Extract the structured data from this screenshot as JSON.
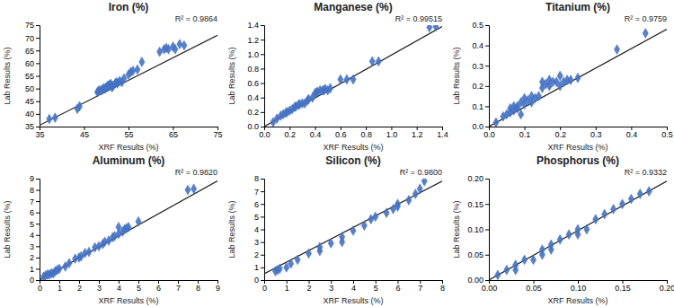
{
  "chart_data": [
    {
      "type": "scatter",
      "title": "Iron (%)",
      "annotation": "R² = 0.9864",
      "xlabel": "XRF Results (%)",
      "ylabel": "Lab Results (%)",
      "xlim": [
        35,
        75
      ],
      "ylim": [
        35,
        75
      ],
      "xticks": [
        35,
        45,
        55,
        65,
        75
      ],
      "yticks": [
        35,
        40,
        45,
        50,
        55,
        60,
        65,
        70,
        75
      ],
      "series": [
        {
          "type": "scatter",
          "marker": "diamond",
          "color": "#4472C4",
          "x": [
            37.2,
            38.5,
            43.5,
            44.0,
            48.0,
            48.2,
            48.5,
            49.0,
            49.3,
            49.5,
            49.8,
            50.0,
            50.3,
            50.5,
            50.8,
            51.0,
            51.3,
            51.5,
            52.0,
            52.3,
            52.5,
            53.0,
            53.5,
            54.0,
            55.0,
            55.5,
            56.0,
            57.0,
            58.0,
            62.0,
            63.0,
            63.5,
            64.0,
            65.0,
            65.5,
            66.5,
            67.5
          ],
          "values": [
            38.0,
            38.5,
            42.0,
            43.0,
            48.5,
            49.0,
            49.3,
            49.5,
            49.8,
            50.2,
            50.0,
            50.5,
            51.0,
            51.2,
            51.5,
            51.8,
            50.5,
            51.0,
            52.0,
            52.5,
            52.0,
            53.0,
            52.5,
            54.0,
            55.5,
            56.5,
            57.0,
            57.5,
            60.5,
            64.5,
            65.5,
            66.0,
            65.5,
            66.5,
            65.5,
            67.5,
            67.0
          ]
        },
        {
          "type": "line",
          "color": "#1a1a1a",
          "x": [
            35,
            75
          ],
          "values": [
            35.5,
            71.0
          ]
        }
      ]
    },
    {
      "type": "scatter",
      "title": "Manganese (%)",
      "annotation": "R² = 0.99515",
      "xlabel": "XRF Results (%)",
      "ylabel": "Lab Results (%)",
      "xlim": [
        0.0,
        1.4
      ],
      "ylim": [
        0.0,
        1.4
      ],
      "xticks": [
        {
          "value": 0.0,
          "label": "0.0"
        },
        0.2,
        0.4,
        0.6,
        0.8,
        {
          "value": 1.0,
          "label": "1.0"
        },
        1.2,
        1.4
      ],
      "yticks": [
        {
          "value": 0.0,
          "label": "0.0"
        },
        0.2,
        0.4,
        0.6,
        0.8,
        {
          "value": 1.0,
          "label": "1.0"
        },
        1.2,
        1.4
      ],
      "series": [
        {
          "type": "scatter",
          "marker": "diamond",
          "color": "#4472C4",
          "x": [
            0.07,
            0.1,
            0.13,
            0.15,
            0.17,
            0.18,
            0.2,
            0.22,
            0.24,
            0.25,
            0.27,
            0.28,
            0.3,
            0.32,
            0.34,
            0.35,
            0.38,
            0.4,
            0.41,
            0.42,
            0.44,
            0.46,
            0.47,
            0.48,
            0.5,
            0.52,
            0.6,
            0.65,
            0.7,
            0.85,
            0.9,
            1.3,
            1.35
          ],
          "values": [
            0.06,
            0.11,
            0.15,
            0.17,
            0.19,
            0.2,
            0.22,
            0.24,
            0.27,
            0.28,
            0.3,
            0.31,
            0.32,
            0.32,
            0.36,
            0.38,
            0.4,
            0.46,
            0.47,
            0.48,
            0.5,
            0.5,
            0.5,
            0.52,
            0.5,
            0.53,
            0.65,
            0.65,
            0.65,
            0.9,
            0.9,
            1.37,
            1.38
          ]
        },
        {
          "type": "line",
          "color": "#1a1a1a",
          "x": [
            0.0,
            1.4
          ],
          "values": [
            0.0,
            1.38
          ]
        }
      ]
    },
    {
      "type": "scatter",
      "title": "Titanium (%)",
      "annotation": "R² = 0.9759",
      "xlabel": "XRF Results (%)",
      "ylabel": "Lab Results (%)",
      "xlim": [
        0.0,
        0.5
      ],
      "ylim": [
        0.0,
        0.5
      ],
      "xticks": [
        {
          "value": 0.0,
          "label": "0.0"
        },
        0.1,
        0.2,
        0.3,
        0.4,
        0.5
      ],
      "yticks": [
        {
          "value": 0.0,
          "label": "0.0"
        },
        0.1,
        0.2,
        0.3,
        0.4,
        0.5
      ],
      "series": [
        {
          "type": "scatter",
          "marker": "diamond",
          "color": "#4472C4",
          "x": [
            0.02,
            0.04,
            0.05,
            0.06,
            0.06,
            0.07,
            0.07,
            0.08,
            0.08,
            0.09,
            0.09,
            0.1,
            0.1,
            0.11,
            0.12,
            0.12,
            0.13,
            0.14,
            0.15,
            0.15,
            0.16,
            0.17,
            0.17,
            0.18,
            0.19,
            0.2,
            0.2,
            0.21,
            0.22,
            0.23,
            0.25,
            0.36,
            0.44
          ],
          "values": [
            0.02,
            0.05,
            0.06,
            0.07,
            0.09,
            0.08,
            0.1,
            0.09,
            0.1,
            0.06,
            0.12,
            0.11,
            0.14,
            0.13,
            0.12,
            0.15,
            0.14,
            0.15,
            0.19,
            0.22,
            0.21,
            0.2,
            0.23,
            0.22,
            0.22,
            0.2,
            0.25,
            0.22,
            0.23,
            0.23,
            0.24,
            0.38,
            0.46
          ]
        },
        {
          "type": "line",
          "color": "#1a1a1a",
          "x": [
            0.0,
            0.5
          ],
          "values": [
            0.0,
            0.48
          ]
        }
      ]
    },
    {
      "type": "scatter",
      "title": "Aluminum (%)",
      "annotation": "R² = 0.9820",
      "xlabel": "XRF Results (%)",
      "ylabel": "Lab Results (%)",
      "xlim": [
        0.0,
        9.0
      ],
      "ylim": [
        0.0,
        9.0
      ],
      "xticks": [
        0.0,
        1.0,
        2.0,
        3.0,
        4.0,
        5.0,
        6.0,
        7.0,
        8.0,
        9.0
      ],
      "yticks": [
        0.0,
        1.0,
        2.0,
        3.0,
        4.0,
        5.0,
        6.0,
        7.0,
        8.0,
        9.0
      ],
      "series": [
        {
          "type": "scatter",
          "marker": "diamond",
          "color": "#4472C4",
          "x": [
            0.2,
            0.3,
            0.4,
            0.5,
            0.6,
            0.7,
            0.8,
            0.9,
            1.0,
            1.3,
            1.5,
            1.8,
            2.0,
            2.1,
            2.3,
            2.5,
            2.8,
            3.0,
            3.2,
            3.3,
            3.5,
            3.7,
            3.8,
            4.0,
            4.0,
            4.2,
            4.3,
            4.4,
            4.5,
            5.0,
            7.5,
            7.8
          ],
          "values": [
            0.3,
            0.4,
            0.5,
            0.5,
            0.6,
            0.6,
            0.8,
            0.9,
            1.0,
            1.2,
            1.5,
            1.9,
            2.0,
            2.1,
            2.4,
            2.5,
            2.9,
            3.0,
            3.2,
            3.4,
            3.5,
            3.8,
            3.9,
            4.1,
            4.7,
            4.3,
            4.5,
            4.6,
            4.7,
            5.2,
            8.0,
            8.1
          ]
        },
        {
          "type": "line",
          "color": "#1a1a1a",
          "x": [
            0.0,
            9.0
          ],
          "values": [
            0.0,
            8.8
          ]
        }
      ]
    },
    {
      "type": "scatter",
      "title": "Silicon (%)",
      "annotation": "R² = 0.9800",
      "xlabel": "XRF Results (%)",
      "ylabel": "Lab Results (%)",
      "xlim": [
        0.0,
        8.0
      ],
      "ylim": [
        0.0,
        8.0
      ],
      "xticks": [
        0.0,
        1.0,
        2.0,
        3.0,
        4.0,
        5.0,
        6.0,
        7.0,
        8.0
      ],
      "yticks": [
        0.0,
        1.0,
        2.0,
        3.0,
        4.0,
        5.0,
        6.0,
        7.0,
        8.0
      ],
      "series": [
        {
          "type": "scatter",
          "marker": "diamond",
          "color": "#4472C4",
          "x": [
            0.5,
            0.6,
            0.7,
            1.0,
            1.2,
            1.5,
            2.0,
            2.5,
            2.5,
            3.0,
            3.5,
            3.5,
            4.0,
            4.5,
            4.8,
            5.0,
            5.5,
            5.8,
            6.0,
            6.0,
            6.5,
            6.8,
            7.0,
            7.2
          ],
          "values": [
            0.7,
            0.8,
            0.9,
            1.0,
            1.3,
            1.6,
            2.1,
            2.3,
            2.6,
            2.9,
            3.0,
            3.4,
            3.9,
            4.3,
            4.8,
            5.0,
            5.3,
            5.6,
            5.8,
            6.0,
            6.3,
            6.8,
            7.2,
            7.8
          ]
        },
        {
          "type": "line",
          "color": "#1a1a1a",
          "x": [
            0.0,
            8.0
          ],
          "values": [
            0.5,
            7.8
          ]
        }
      ]
    },
    {
      "type": "scatter",
      "title": "Phosphorus (%)",
      "annotation": "R² = 0.9332",
      "xlabel": "XRF Results (%)",
      "ylabel": "Lab Results (%)",
      "xlim": [
        0.0,
        0.2
      ],
      "ylim": [
        0.0,
        0.2
      ],
      "xticks": [
        {
          "value": 0.0,
          "label": "0.00"
        },
        0.05,
        {
          "value": 0.1,
          "label": "0.10"
        },
        0.15,
        {
          "value": 0.2,
          "label": "0.20"
        }
      ],
      "yticks": [
        {
          "value": 0.0,
          "label": "0.00"
        },
        0.05,
        {
          "value": 0.1,
          "label": "0.10"
        },
        0.15,
        {
          "value": 0.2,
          "label": "0.20"
        }
      ],
      "series": [
        {
          "type": "scatter",
          "marker": "diamond",
          "color": "#4472C4",
          "x": [
            0.01,
            0.02,
            0.03,
            0.03,
            0.04,
            0.05,
            0.06,
            0.06,
            0.07,
            0.07,
            0.08,
            0.09,
            0.1,
            0.1,
            0.11,
            0.12,
            0.13,
            0.14,
            0.15,
            0.16,
            0.17,
            0.18
          ],
          "values": [
            0.01,
            0.02,
            0.02,
            0.03,
            0.04,
            0.04,
            0.05,
            0.06,
            0.06,
            0.07,
            0.08,
            0.09,
            0.09,
            0.1,
            0.1,
            0.12,
            0.13,
            0.14,
            0.15,
            0.16,
            0.17,
            0.175
          ]
        },
        {
          "type": "line",
          "color": "#1a1a1a",
          "x": [
            0.0,
            0.2
          ],
          "values": [
            0.0,
            0.195
          ]
        }
      ]
    }
  ]
}
